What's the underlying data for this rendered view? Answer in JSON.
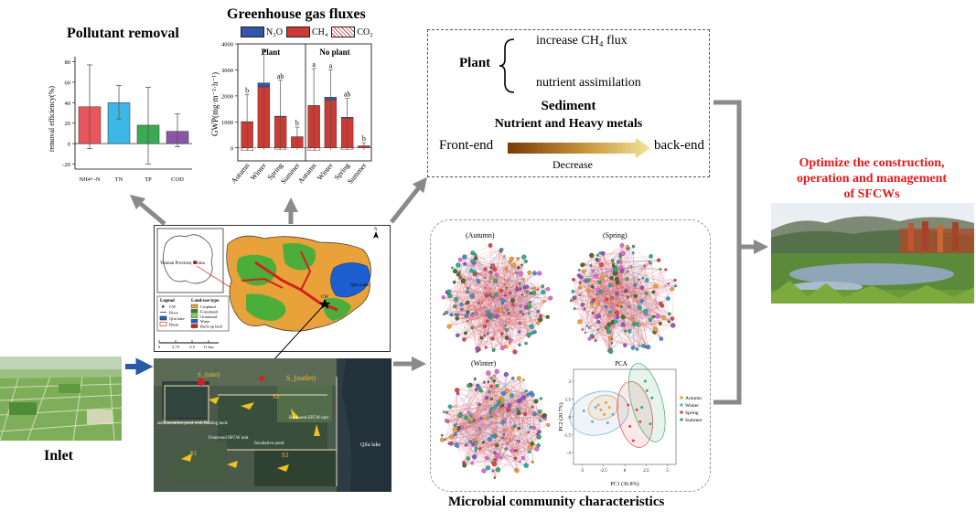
{
  "pollutant": {
    "title": "Pollutant removal",
    "ylabel": "removal efficiency(%)",
    "yticks": [
      "80",
      "60",
      "40",
      "20",
      "0",
      "-20"
    ]
  },
  "ghg": {
    "title": "Greenhouse gas fluxes",
    "legend": {
      "n2o": "N₂O",
      "ch4": "CH₄",
      "co2": "CO₂"
    },
    "ylabel": "GWP(mg·m⁻²·h⁻¹)",
    "yticks": [
      "4000",
      "3000",
      "2000",
      "1000",
      "0"
    ],
    "panel_plant": "Plant",
    "panel_noplant": "No plant"
  },
  "plant_box": {
    "plant_label": "Plant",
    "effect1": "increase CH₄ flux",
    "effect2": "nutrient assimilation",
    "sediment_title": "Sediment",
    "sediment_sub": "Nutrient and Heavy metals",
    "front": "Front-end",
    "back": "back-end",
    "decrease": "Decrease"
  },
  "optimize": {
    "line1": "Optimize the construction,",
    "line2": "operation and management",
    "line3": "of SFCWs",
    "color": "#e8191b"
  },
  "inlet": {
    "label": "Inlet"
  },
  "map": {
    "province_label": "Yunnan Province, China",
    "lake_label": "Qilu Lake",
    "sfcw_label": "CW",
    "legend_title": "Legend",
    "landuse_title": "Land-use type",
    "legend_items": [
      "CW",
      "River",
      "Qilu lake",
      "Basin"
    ],
    "landuse_items": [
      "Cropland",
      "Forestland",
      "Grassland",
      "Water",
      "Built-up land"
    ],
    "scale": [
      "0",
      "2.75",
      "5.5",
      "11 km"
    ],
    "north": "N"
  },
  "aerial": {
    "s_outlet": "S_(outlet)",
    "s_inlet": "S_(inlet)",
    "s2": "S2",
    "s1": "S1",
    "s3": "S3",
    "sed_pond": "sedimentation pond with floating beds",
    "front_sfcw": "Front-end SFCW unit",
    "fac_pond": "facultative pond",
    "back_sfcw": "Back-end SFCW unit",
    "qilu": "Qilu lake"
  },
  "microbial": {
    "title": "Microbial community characteristics",
    "autumn": "(Autumn)",
    "spring": "(Spring)",
    "winter": "(Winter)",
    "pca": {
      "title": "PCA",
      "xlabel": "PC1 (36.8%)",
      "ylabel": "PC2 (20.7%)",
      "xticks": [
        "-5",
        "-2.5",
        "0",
        "2.5",
        "5"
      ],
      "yticks": [
        "-3",
        "-1.5",
        "0",
        "1.5",
        "3"
      ],
      "legend": [
        "Autumn",
        "Winter",
        "Spring",
        "Summer"
      ],
      "colors": [
        "#f0a030",
        "#6ab0d8",
        "#e04848",
        "#3aa870"
      ]
    }
  },
  "chart_data": [
    {
      "type": "bar",
      "title": "Pollutant removal",
      "ylabel": "removal efficiency(%)",
      "ylim": [
        -25,
        85
      ],
      "categories": [
        "NH4+-N",
        "TN",
        "TP",
        "COD"
      ],
      "values": [
        36,
        40,
        18,
        12
      ],
      "error_low": [
        -5,
        24,
        -20,
        -3
      ],
      "error_high": [
        77,
        57,
        55,
        29
      ],
      "colors": [
        "#e8555c",
        "#3db8e6",
        "#3aaa55",
        "#8b55a8"
      ]
    },
    {
      "type": "bar",
      "title": "Greenhouse gas fluxes",
      "ylabel": "GWP(mg·m⁻²·h⁻¹)",
      "ylim": [
        -500,
        4000
      ],
      "categories": [
        "Autumn",
        "Winter",
        "Spring",
        "Summer",
        "Autumn",
        "Winter",
        "Spring",
        "Summer"
      ],
      "groups": [
        "Plant",
        "Plant",
        "Plant",
        "Plant",
        "No plant",
        "No plant",
        "No plant",
        "No plant"
      ],
      "series": [
        {
          "name": "N₂O",
          "values": [
            10,
            150,
            20,
            10,
            10,
            100,
            30,
            10
          ]
        },
        {
          "name": "CH₄",
          "values": [
            1000,
            2350,
            1200,
            420,
            1620,
            1850,
            1150,
            70
          ]
        },
        {
          "name": "CO₂",
          "values": [
            -100,
            0,
            -50,
            0,
            -100,
            0,
            -50,
            0
          ]
        }
      ],
      "error_high": [
        2050,
        3600,
        2600,
        800,
        3050,
        3000,
        1900,
        200
      ],
      "letters": [
        "b",
        "a",
        "ab",
        "b",
        "a",
        "a",
        "ab",
        "b"
      ]
    }
  ]
}
